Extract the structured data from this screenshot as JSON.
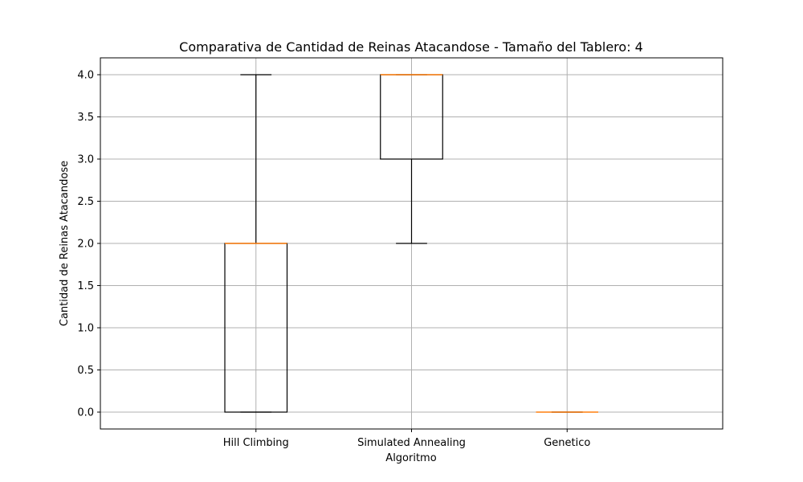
{
  "chart_data": {
    "type": "box",
    "title": "Comparativa de Cantidad de Reinas Atacandose - Tamaño del Tablero: 4",
    "xlabel": "Algoritmo",
    "ylabel": "Cantidad de Reinas Atacandose",
    "categories": [
      "Hill Climbing",
      "Simulated Annealing",
      "Genetico"
    ],
    "boxes": [
      {
        "category": "Hill Climbing",
        "whisker_low": 0.0,
        "q1": 0.0,
        "median": 2.0,
        "q3": 2.0,
        "whisker_high": 4.0
      },
      {
        "category": "Simulated Annealing",
        "whisker_low": 2.0,
        "q1": 3.0,
        "median": 4.0,
        "q3": 4.0,
        "whisker_high": 4.0
      },
      {
        "category": "Genetico",
        "whisker_low": 0.0,
        "q1": 0.0,
        "median": 0.0,
        "q3": 0.0,
        "whisker_high": 0.0
      }
    ],
    "ylim": [
      -0.2,
      4.2
    ],
    "yticks": [
      "0.0",
      "0.5",
      "1.0",
      "1.5",
      "2.0",
      "2.5",
      "3.0",
      "3.5",
      "4.0"
    ],
    "grid": true,
    "colors": {
      "box": "#000000",
      "median": "#ff7f0e",
      "grid": "#b0b0b0"
    }
  }
}
